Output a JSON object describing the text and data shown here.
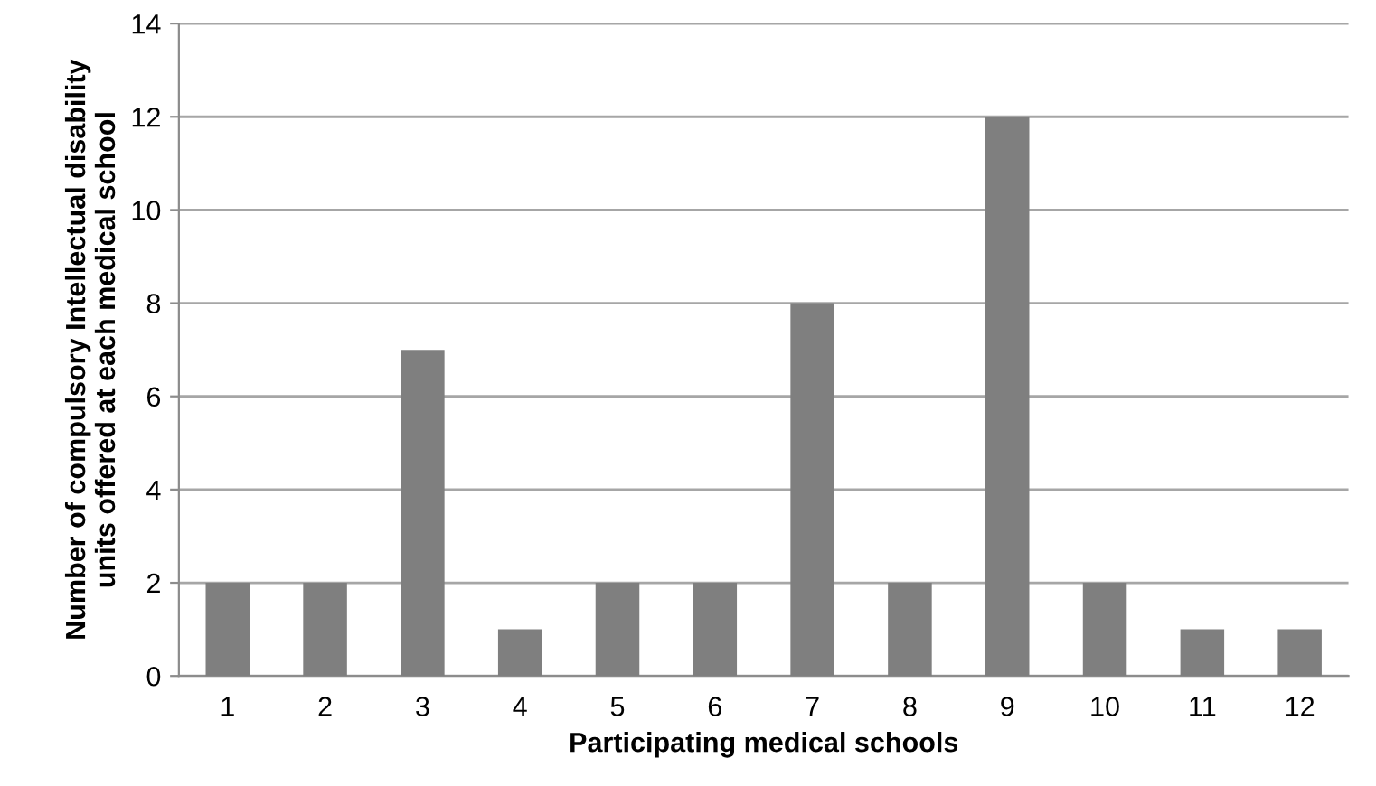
{
  "chart_data": {
    "type": "bar",
    "xlabel": "Participating medical schools",
    "ylabel": "Number of compulsory Intellectual disability\nunits offered at each medical school",
    "categories": [
      "1",
      "2",
      "3",
      "4",
      "5",
      "6",
      "7",
      "8",
      "9",
      "10",
      "11",
      "12"
    ],
    "values": [
      2,
      2,
      7,
      1,
      2,
      2,
      8,
      2,
      12,
      2,
      1,
      1
    ],
    "color": "#7f7f7f",
    "ylim": [
      0,
      14
    ],
    "yticks": [
      0,
      2,
      4,
      6,
      8,
      10,
      12,
      14
    ],
    "grid": "y"
  }
}
